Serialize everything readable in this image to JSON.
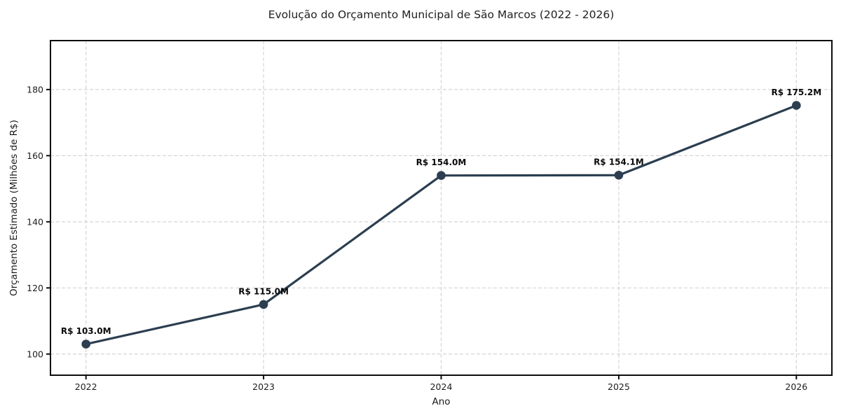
{
  "chart_data": {
    "type": "line",
    "title": "Evolução do Orçamento Municipal de São Marcos (2022 - 2026)",
    "xlabel": "Ano",
    "ylabel": "Orçamento Estimado (Milhões de R$)",
    "categories": [
      "2022",
      "2023",
      "2024",
      "2025",
      "2026"
    ],
    "values": [
      103.0,
      115.0,
      154.0,
      154.1,
      175.2
    ],
    "point_labels": [
      "R$ 103.0M",
      "R$ 115.0M",
      "R$ 154.0M",
      "R$ 154.1M",
      "R$ 175.2M"
    ],
    "yticks": [
      100,
      120,
      140,
      160,
      180
    ],
    "ylim": [
      93.6,
      194.8
    ],
    "grid": true,
    "grid_style": "dashed",
    "legend_position": "none",
    "colors": {
      "line": "#2c3e50",
      "marker": "#2c3e50",
      "grid": "#c8c8c8",
      "axis": "#0d0d0d",
      "tick_text": "#1c1c1c",
      "annotation_text": "#0a0a0a",
      "background": "#ffffff"
    }
  }
}
